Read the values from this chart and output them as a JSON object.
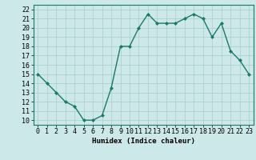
{
  "x": [
    0,
    1,
    2,
    3,
    4,
    5,
    6,
    7,
    8,
    9,
    10,
    11,
    12,
    13,
    14,
    15,
    16,
    17,
    18,
    19,
    20,
    21,
    22,
    23
  ],
  "y": [
    15,
    14,
    13,
    12,
    11.5,
    10,
    10,
    10.5,
    13.5,
    18,
    18,
    20,
    21.5,
    20.5,
    20.5,
    20.5,
    21,
    21.5,
    21,
    19,
    20.5,
    17.5,
    16.5,
    15
  ],
  "line_color": "#1a7a6a",
  "marker": "D",
  "marker_size": 2.0,
  "linewidth": 1.0,
  "xlabel": "Humidex (Indice chaleur)",
  "xlim": [
    -0.5,
    23.5
  ],
  "ylim": [
    9.5,
    22.5
  ],
  "yticks": [
    10,
    11,
    12,
    13,
    14,
    15,
    16,
    17,
    18,
    19,
    20,
    21,
    22
  ],
  "xticks": [
    0,
    1,
    2,
    3,
    4,
    5,
    6,
    7,
    8,
    9,
    10,
    11,
    12,
    13,
    14,
    15,
    16,
    17,
    18,
    19,
    20,
    21,
    22,
    23
  ],
  "bg_color": "#cce8e8",
  "grid_color": "#aacccc",
  "label_fontsize": 6.5,
  "tick_fontsize": 6.0
}
